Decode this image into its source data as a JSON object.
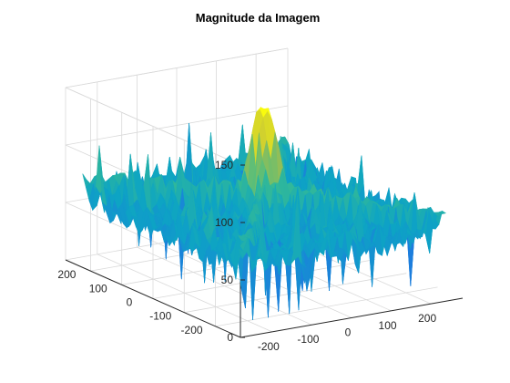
{
  "chart_data": {
    "type": "surface",
    "title": "Magnitude da Imagem",
    "xlabel": "",
    "ylabel": "",
    "zlabel": "",
    "x_ticks": [
      -200,
      -100,
      0,
      100,
      200
    ],
    "y_ticks": [
      -200,
      -100,
      0,
      100,
      200
    ],
    "z_ticks": [
      0,
      50,
      100,
      150
    ],
    "x_range": [
      -280,
      280
    ],
    "y_range": [
      -280,
      280
    ],
    "z_range": [
      0,
      150
    ],
    "grid": true,
    "colormap": "parula",
    "surface_summary": {
      "baseline_level": 58,
      "noise_spread": 14,
      "center_peak": 138,
      "diagonal_ridge_level": 80,
      "ridge_directions": [
        "diagonal",
        "anti-diagonal"
      ]
    }
  }
}
